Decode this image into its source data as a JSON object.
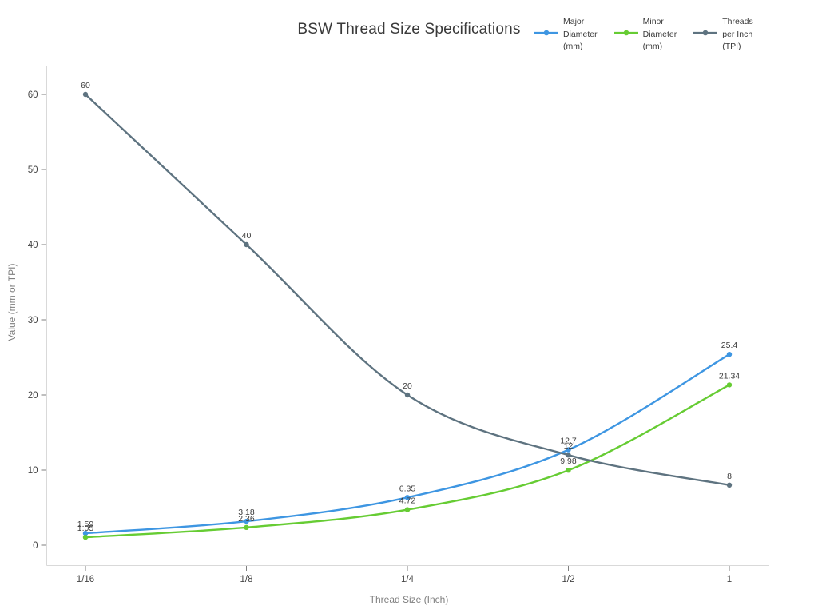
{
  "page": {
    "background": "#ffffff"
  },
  "chart_data": {
    "type": "line",
    "line_shape": "spline",
    "markers": true,
    "grid": false,
    "title": "BSW Thread Size Specifications",
    "xlabel": "Thread Size (Inch)",
    "ylabel": "Value (mm or TPI)",
    "categories": [
      "1/16",
      "1/8",
      "1/4",
      "1/2",
      "1"
    ],
    "yticks": [
      "0",
      "10",
      "20",
      "30",
      "40",
      "50",
      "60"
    ],
    "ylim": [
      0,
      60
    ],
    "legend_position": "top-right",
    "series": [
      {
        "name": "Major Diameter (mm)",
        "legend_lines": [
          "Major",
          "Diameter",
          "(mm)"
        ],
        "color": "#3E96E2",
        "values": [
          1.59,
          3.18,
          6.35,
          12.7,
          25.4
        ],
        "point_labels": [
          "1.59",
          "3.18",
          "6.35",
          "12.7",
          "25.4"
        ]
      },
      {
        "name": "Minor Diameter (mm)",
        "legend_lines": [
          "Minor",
          "Diameter",
          "(mm)"
        ],
        "color": "#66CC33",
        "values": [
          1.05,
          2.36,
          4.72,
          9.98,
          21.34
        ],
        "point_labels": [
          "1.05",
          "2.36",
          "4.72",
          "9.98",
          "21.34"
        ]
      },
      {
        "name": "Threads per Inch (TPI)",
        "legend_lines": [
          "Threads",
          "per Inch",
          "(TPI)"
        ],
        "color": "#5E7380",
        "values": [
          60,
          40,
          20,
          12,
          8
        ],
        "point_labels": [
          "60",
          "40",
          "20",
          "12",
          "8"
        ]
      }
    ],
    "styles": {
      "title_color": "#3a3a3a",
      "tick_label_color": "#444444",
      "axis_title_color": "#808080",
      "point_label_color": "#3c3c3c",
      "spine_color": "#d9d9d9",
      "tick_mark_color": "#7f7f7f"
    }
  }
}
